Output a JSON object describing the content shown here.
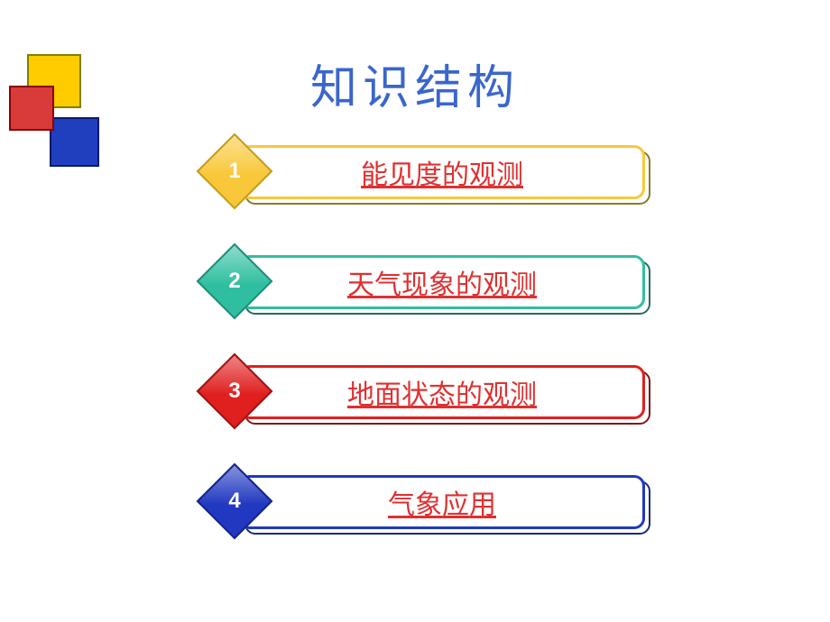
{
  "title": {
    "text": "知识结构",
    "color": "#3a66cc",
    "fontsize": 52
  },
  "corner_squares": {
    "yellow": "#ffcc00",
    "red": "#d93b3b",
    "blue": "#1f3fbf"
  },
  "items": [
    {
      "num": "1",
      "label": "能见度的观测",
      "diamond_fill": "#f9c83a",
      "diamond_border": "#c49a1a",
      "num_color": "#ffffff",
      "bar_border": "#f9c83a",
      "shadow_border": "#8a7a2a",
      "text_color": "#e03030",
      "text_fontsize": 30
    },
    {
      "num": "2",
      "label": "天气现象的观测",
      "diamond_fill": "#2fbfa0",
      "diamond_border": "#1e8d77",
      "num_color": "#ffffff",
      "bar_border": "#2fbfa0",
      "shadow_border": "#2a6a5c",
      "text_color": "#e03030",
      "text_fontsize": 30
    },
    {
      "num": "3",
      "label": "地面状态的观测",
      "diamond_fill": "#e01f1f",
      "diamond_border": "#a01212",
      "num_color": "#ffffff",
      "bar_border": "#e01f1f",
      "shadow_border": "#7a1a1a",
      "text_color": "#e03030",
      "text_fontsize": 30
    },
    {
      "num": "4",
      "label": "气象应用",
      "diamond_fill": "#2138c0",
      "diamond_border": "#15248a",
      "num_color": "#ffffff",
      "bar_border": "#2138c0",
      "shadow_border": "#1a2a7a",
      "text_color": "#e03030",
      "text_fontsize": 30
    }
  ],
  "numbering_fontsize": 24
}
